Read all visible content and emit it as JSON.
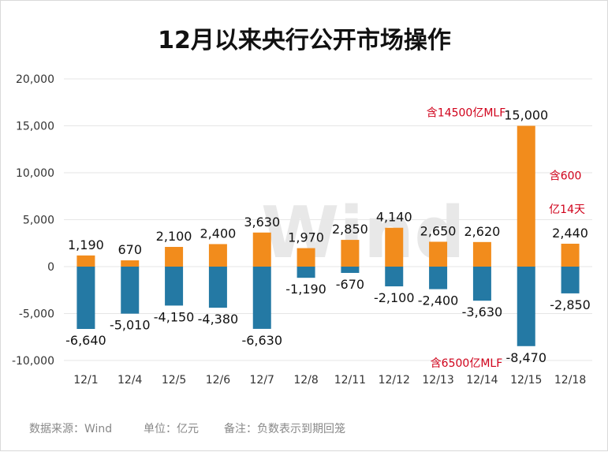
{
  "chart_data": {
    "type": "bar",
    "title": "12月以来央行公开市场操作",
    "categories": [
      "12/1",
      "12/4",
      "12/5",
      "12/6",
      "12/7",
      "12/8",
      "12/11",
      "12/12",
      "12/13",
      "12/14",
      "12/15",
      "12/18"
    ],
    "series": [
      {
        "values": [
          1190,
          670,
          2100,
          2400,
          3630,
          1970,
          2850,
          4140,
          2650,
          2620,
          15000,
          2440
        ],
        "color": "#f28c1c"
      },
      {
        "values": [
          -6640,
          -5010,
          -4150,
          -4380,
          -6630,
          -1190,
          -670,
          -2100,
          -2400,
          -3630,
          -8470,
          -2850
        ],
        "color": "#2479a4"
      }
    ],
    "ylim": [
      -10000,
      20000
    ],
    "yticks": [
      20000,
      15000,
      10000,
      5000,
      0,
      -5000,
      -10000
    ],
    "ytick_labels": [
      "20,000",
      "15,000",
      "10,000",
      "5,000",
      "0",
      "-5,000",
      "-10,000"
    ],
    "grid": true,
    "annotations": [
      {
        "text": "含14500亿MLF",
        "category": "12/15",
        "series": 0
      },
      {
        "text": "含6500亿MLF",
        "category": "12/15",
        "series": 1
      },
      {
        "text": "含600",
        "category": "12/18",
        "series": 0
      },
      {
        "text": "亿14天",
        "category": "12/18",
        "series": 0
      }
    ]
  },
  "watermark": "Wind",
  "footer": {
    "source": "数据来源：Wind",
    "unit": "单位：亿元",
    "note": "备注：负数表示到期回笼"
  }
}
